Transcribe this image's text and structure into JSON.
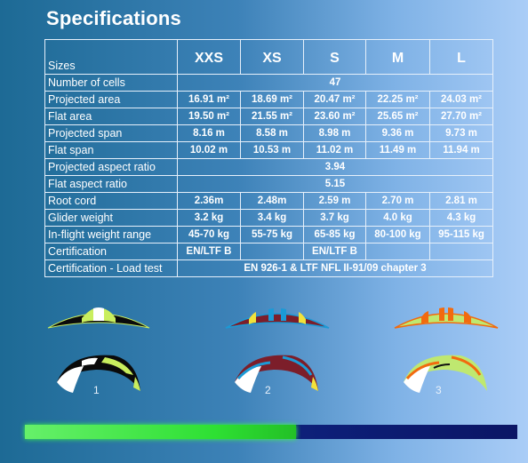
{
  "title": "Specifications",
  "table": {
    "sizes_label": "Sizes",
    "sizes": [
      "XXS",
      "XS",
      "S",
      "M",
      "L"
    ],
    "rows": [
      {
        "label": "Number of cells",
        "span": "47"
      },
      {
        "label": "Projected area",
        "values": [
          "16.91 m²",
          "18.69 m²",
          "20.47 m²",
          "22.25 m²",
          "24.03 m²"
        ]
      },
      {
        "label": "Flat area",
        "values": [
          "19.50 m²",
          "21.55 m²",
          "23.60 m²",
          "25.65 m²",
          "27.70 m²"
        ]
      },
      {
        "label": "Projected span",
        "values": [
          "8.16 m",
          "8.58 m",
          "8.98 m",
          "9.36 m",
          "9.73 m"
        ]
      },
      {
        "label": "Flat span",
        "values": [
          "10.02 m",
          "10.53 m",
          "11.02 m",
          "11.49 m",
          "11.94 m"
        ]
      },
      {
        "label": "Projected aspect ratio",
        "span": "3.94"
      },
      {
        "label": "Flat aspect ratio",
        "span": "5.15"
      },
      {
        "label": "Root cord",
        "values": [
          "2.36m",
          "2.48m",
          "2.59 m",
          "2.70 m",
          "2.81 m"
        ]
      },
      {
        "label": "Glider weight",
        "values": [
          "3.2 kg",
          "3.4 kg",
          "3.7 kg",
          "4.0 kg",
          "4.3 kg"
        ]
      },
      {
        "label": "In-flight weight range",
        "values": [
          "45-70 kg",
          "55-75 kg",
          "65-85 kg",
          "80-100 kg",
          "95-115 kg"
        ]
      },
      {
        "label": "Certification",
        "values": [
          "EN/LTF B",
          "",
          "EN/LTF B",
          "",
          ""
        ]
      },
      {
        "label": "Certification - Load test",
        "span": "EN 926-1 & LTF NFL II-91/09 chapter 3"
      }
    ]
  },
  "color_options": [
    {
      "number": "1",
      "canopy": "#0a0a0a",
      "accent": "#c9ee5e",
      "tip": "#ffffff"
    },
    {
      "number": "2",
      "canopy": "#7c1e2a",
      "accent": "#1b9ad6",
      "tip": "#f2e23a"
    },
    {
      "number": "3",
      "canopy": "#bfe870",
      "accent": "#f26a0e",
      "tip": "#ffffff"
    }
  ],
  "progress": {
    "fraction": 0.55,
    "fill_color": "#3ee844",
    "track_color": "#0f1f7a"
  }
}
